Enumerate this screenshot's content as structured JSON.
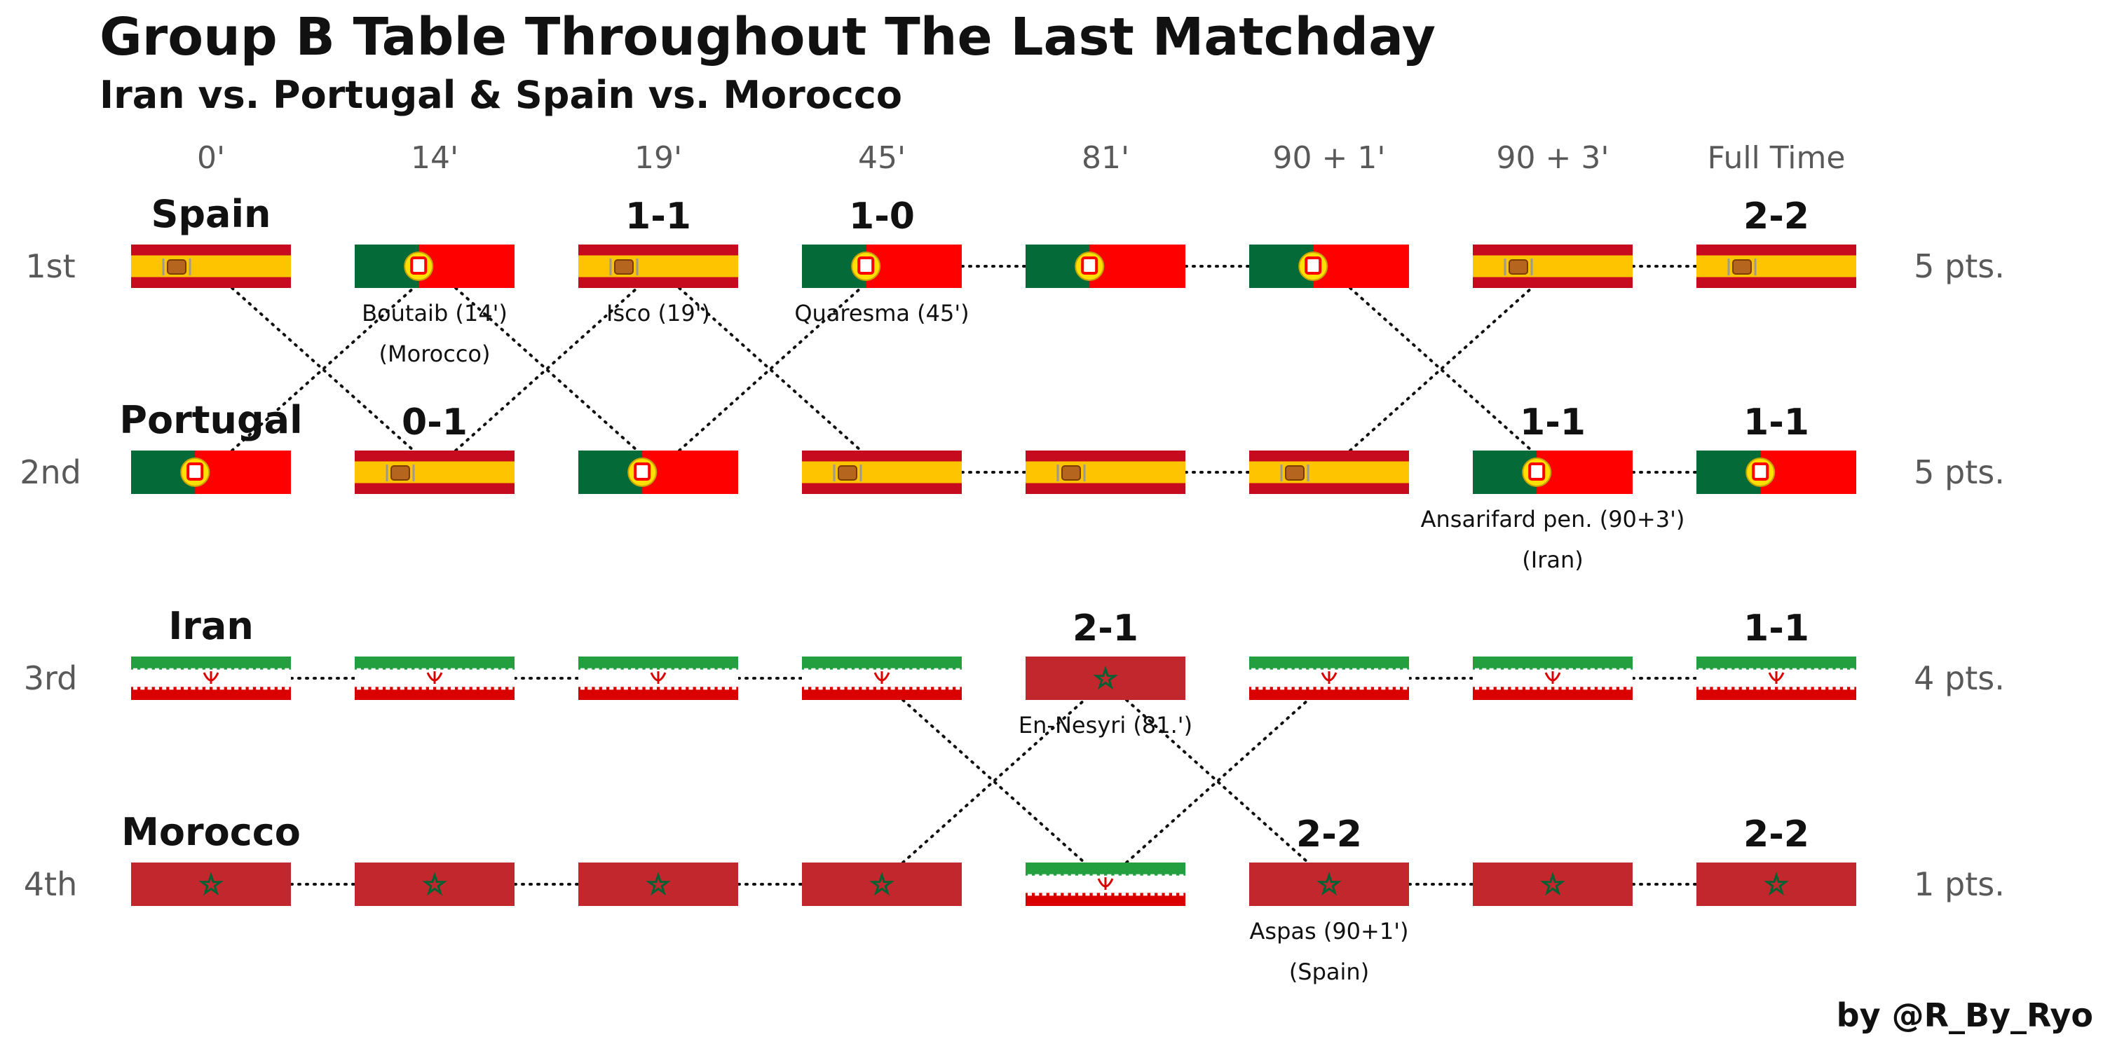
{
  "title": "Group B Table Throughout The Last Matchday",
  "subtitle": "Iran vs. Portugal & Spain vs. Morocco",
  "credit": "by @R_By_Ryo",
  "chart_data": {
    "type": "bump",
    "times": [
      "0'",
      "14'",
      "19'",
      "45'",
      "81'",
      "90 + 1'",
      "90 + 3'",
      "Full Time"
    ],
    "ranks": [
      "1st",
      "2nd",
      "3rd",
      "4th"
    ],
    "points": [
      "5 pts.",
      "5 pts.",
      "4 pts.",
      "1 pts."
    ],
    "teams": {
      "Spain": {
        "name": "Spain",
        "flag": "spain",
        "positions": [
          1,
          2,
          1,
          2,
          2,
          2,
          1,
          1
        ]
      },
      "Portugal": {
        "name": "Portugal",
        "flag": "portugal",
        "positions": [
          2,
          1,
          2,
          1,
          1,
          1,
          2,
          2
        ]
      },
      "Iran": {
        "name": "Iran",
        "flag": "iran",
        "positions": [
          3,
          3,
          3,
          3,
          4,
          3,
          3,
          3
        ]
      },
      "Morocco": {
        "name": "Morocco",
        "flag": "morocco",
        "positions": [
          4,
          4,
          4,
          4,
          3,
          4,
          4,
          4
        ]
      }
    },
    "team_labels": [
      {
        "team": "Spain",
        "rank": 1
      },
      {
        "team": "Portugal",
        "rank": 2
      },
      {
        "team": "Iran",
        "rank": 3
      },
      {
        "team": "Morocco",
        "rank": 4
      }
    ],
    "scores": [
      {
        "time": 1,
        "rank": 2,
        "text": "0-1"
      },
      {
        "time": 2,
        "rank": 1,
        "text": "1-1"
      },
      {
        "time": 3,
        "rank": 1,
        "text": "1-0"
      },
      {
        "time": 4,
        "rank": 3,
        "text": "2-1"
      },
      {
        "time": 5,
        "rank": 4,
        "text": "2-2"
      },
      {
        "time": 6,
        "rank": 2,
        "text": "1-1"
      },
      {
        "time": 7,
        "rank": 1,
        "text": "2-2"
      },
      {
        "time": 7,
        "rank": 2,
        "text": "1-1"
      },
      {
        "time": 7,
        "rank": 3,
        "text": "1-1"
      },
      {
        "time": 7,
        "rank": 4,
        "text": "2-2"
      }
    ],
    "goals": [
      {
        "time": 1,
        "rank": 1,
        "lines": [
          "Boutaib (14')",
          "(Morocco)"
        ]
      },
      {
        "time": 2,
        "rank": 1,
        "lines": [
          "Isco (19')"
        ]
      },
      {
        "time": 3,
        "rank": 1,
        "lines": [
          "Quaresma (45')"
        ]
      },
      {
        "time": 6,
        "rank": 2,
        "lines": [
          "Ansarifard pen. (90+3')",
          "(Iran)"
        ]
      },
      {
        "time": 4,
        "rank": 3,
        "lines": [
          "En-Nesyri (81.')"
        ]
      },
      {
        "time": 5,
        "rank": 4,
        "lines": [
          "Aspas (90+1')",
          "(Spain)"
        ]
      }
    ]
  },
  "colors": {
    "spain_red": "#c60b1e",
    "spain_yellow": "#ffc400",
    "portugal_green": "#046a38",
    "portugal_red": "#ff0000",
    "iran_green": "#239f40",
    "iran_red": "#da0000",
    "morocco_red": "#c1272d",
    "morocco_green": "#006233",
    "axis_text": "#595959"
  }
}
